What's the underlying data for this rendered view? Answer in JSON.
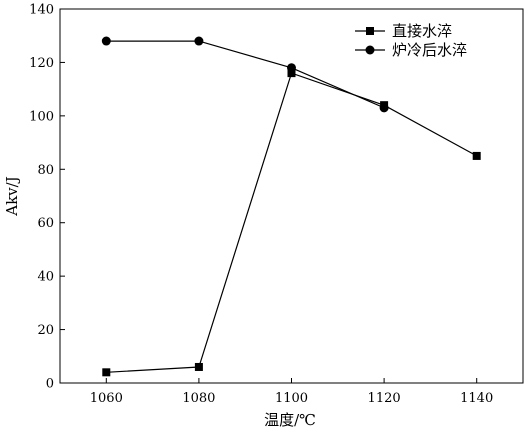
{
  "chart_data": {
    "type": "line",
    "title": "",
    "xlabel": "温度/℃",
    "ylabel": "Akv/J",
    "x": [
      1060,
      1080,
      1100,
      1120,
      1140
    ],
    "xlim": [
      1050,
      1150
    ],
    "ylim": [
      0,
      140
    ],
    "xticks": [
      "1060",
      "1080",
      "1100",
      "1120",
      "1140"
    ],
    "yticks": [
      "0",
      "20",
      "40",
      "60",
      "80",
      "100",
      "120",
      "140"
    ],
    "grid": false,
    "legend_position": "top-right",
    "series": [
      {
        "name": "直接水淬",
        "marker": "square",
        "color": "#000000",
        "x": [
          1060,
          1080,
          1100,
          1120,
          1140
        ],
        "values": [
          4,
          6,
          116,
          104,
          85
        ]
      },
      {
        "name": "炉冷后水淬",
        "marker": "circle",
        "color": "#000000",
        "x": [
          1060,
          1080,
          1100,
          1120
        ],
        "values": [
          128,
          128,
          118,
          103
        ]
      }
    ]
  }
}
